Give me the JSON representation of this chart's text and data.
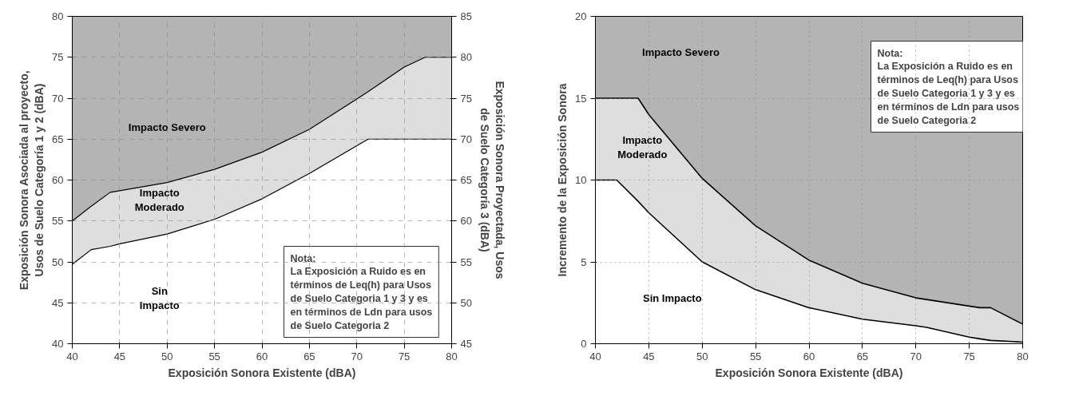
{
  "chart_data": [
    {
      "type": "area",
      "xlabel": "Exposición Sonora Existente (dBA)",
      "ylabel": "Exposición Sonora Asociada al proyecto,\nUsos de Suelo Categoría 1 y 2 (dBA)",
      "y2label": "Exposición Sonora Proyectada, Usos\nde Suelo Categoría 3 (dBA)",
      "x": [
        40,
        42,
        44,
        45,
        50,
        55,
        60,
        65,
        70,
        71.2,
        75,
        77.2,
        80
      ],
      "series": [
        {
          "color": "#ffffff",
          "values": [
            49.7,
            51.5,
            51.9,
            52.2,
            53.4,
            55.2,
            57.7,
            60.8,
            64.2,
            65,
            65,
            65,
            65
          ]
        },
        {
          "color": "#dedede",
          "values": [
            55,
            56.8,
            58.5,
            58.7,
            59.7,
            61.3,
            63.4,
            66.2,
            69.9,
            70.8,
            73.8,
            75,
            75
          ]
        }
      ],
      "xlim": [
        40,
        80
      ],
      "xticks": [
        40,
        45,
        50,
        55,
        60,
        65,
        70,
        75,
        80
      ],
      "ylim": [
        40,
        80
      ],
      "yticks": [
        40,
        45,
        50,
        55,
        60,
        65,
        70,
        75,
        80
      ],
      "y2lim": [
        45,
        85
      ],
      "y2ticks": [
        45,
        50,
        55,
        60,
        65,
        70,
        75,
        80,
        85
      ],
      "grid": true,
      "line_style": "solid",
      "annotations": [
        "Impacto Severo",
        "Impacto\nModerado",
        "Sin\nImpacto",
        "Nota:\nLa Exposición a Ruido es en\ntérminos de Leq(h) para Usos\nde Suelo Categoria 1 y 3 y es\nen términos de Ldn para usos\nde Suelo Categoria 2"
      ]
    },
    {
      "type": "area",
      "xlabel": "Exposición Sonora Existente (dBA)",
      "ylabel": "Incremento de la Exposición Sonora",
      "x": [
        40,
        42,
        44,
        45,
        50,
        55,
        60,
        65,
        70,
        71,
        75,
        76,
        77,
        80
      ],
      "series": [
        {
          "color": "#ffffff",
          "values": [
            10,
            10,
            8.7,
            8.0,
            5.0,
            3.3,
            2.2,
            1.5,
            1.1,
            1.0,
            0.4,
            0.3,
            0.2,
            0.1
          ]
        },
        {
          "color": "#dedede",
          "values": [
            15,
            15,
            15,
            14,
            10.1,
            7.2,
            5.1,
            3.7,
            2.8,
            2.7,
            2.3,
            2.2,
            2.2,
            1.2
          ]
        }
      ],
      "xlim": [
        40,
        80
      ],
      "xticks": [
        40,
        45,
        50,
        55,
        60,
        65,
        70,
        75,
        80
      ],
      "ylim": [
        0,
        20
      ],
      "yticks": [
        0,
        5,
        10,
        15,
        20
      ],
      "grid": true,
      "line_style": "solid",
      "annotations": [
        "Impacto Severo",
        "Impacto\nModerado",
        "Sin Impacto",
        "Nota:\nLa Exposición a Ruido es en\ntérminos de Leq(h) para Usos\nde Suelo Categoria 1 y 3 y es\nen términos de Ldn para usos\nde Suelo Categoria 2"
      ]
    }
  ]
}
